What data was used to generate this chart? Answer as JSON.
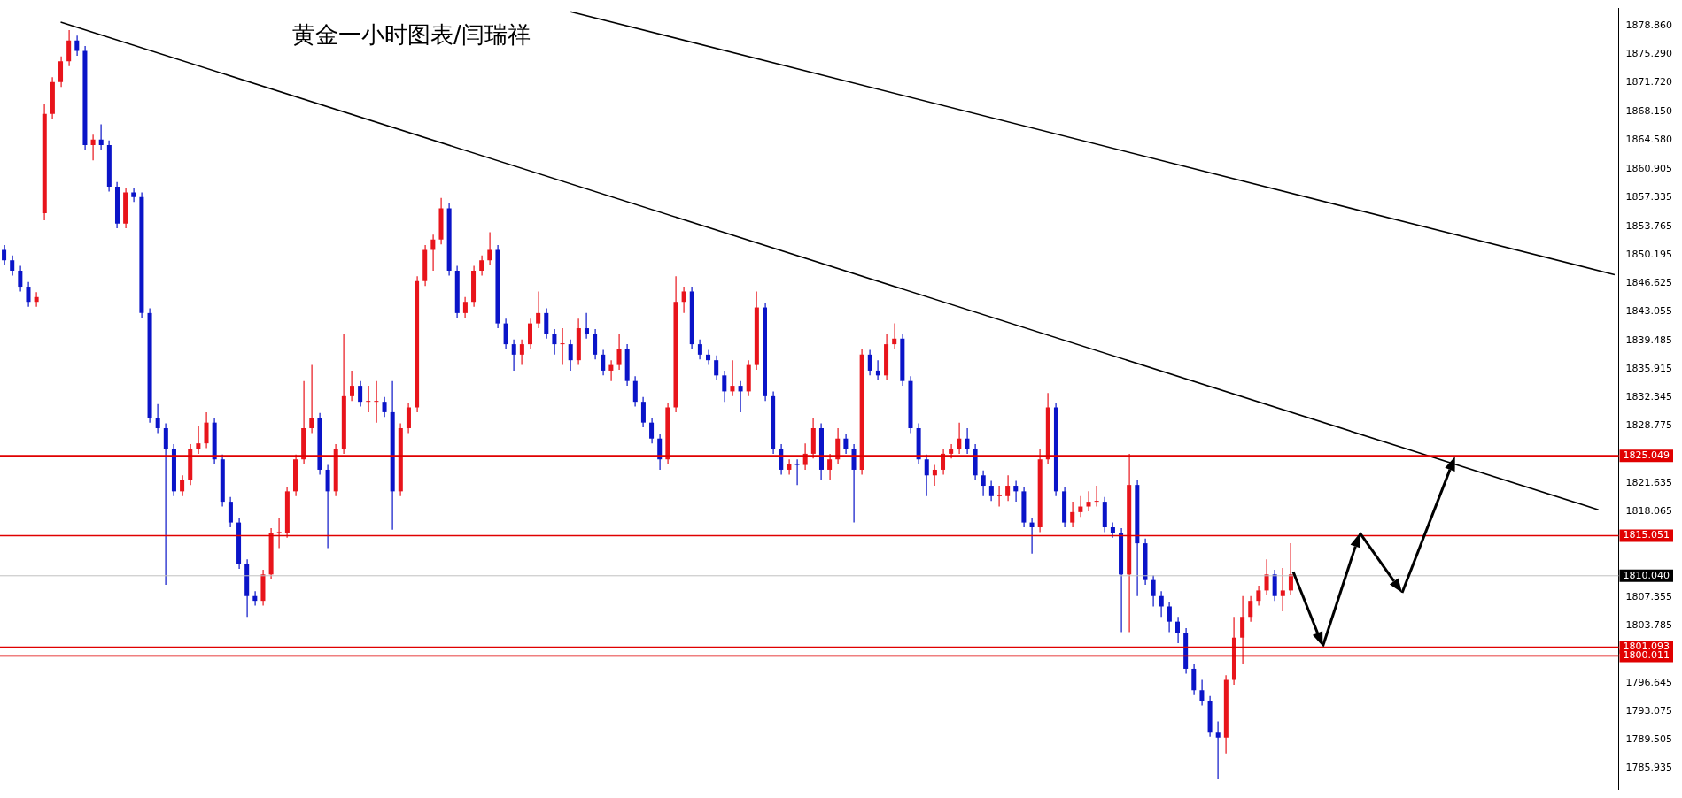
{
  "chart_data": {
    "type": "candlestick",
    "title": "黄金一小时图表/闫瑞祥",
    "categories": [
      null,
      null,
      null,
      null,
      null,
      null,
      null,
      null,
      null,
      null,
      null,
      null,
      null,
      null,
      null,
      null,
      null,
      null,
      null,
      null,
      null,
      null,
      null,
      null,
      null,
      null,
      null,
      null,
      null,
      null,
      null,
      null,
      null,
      null,
      null,
      null,
      null,
      null,
      null,
      null,
      null,
      null,
      null,
      null,
      null,
      null,
      null,
      null,
      null,
      null,
      null,
      null,
      null,
      null,
      null,
      null,
      null,
      null,
      null,
      null,
      null,
      null,
      null,
      null,
      null,
      null,
      null,
      null,
      null,
      null,
      null,
      null,
      null,
      null,
      null,
      null,
      null,
      null,
      null,
      null,
      null,
      null,
      null,
      null,
      null,
      null,
      null,
      null,
      null,
      null,
      null,
      null,
      null,
      null,
      null,
      null,
      null,
      null,
      null,
      null,
      null,
      null,
      null,
      null,
      null,
      null,
      null,
      null,
      null,
      null,
      null,
      null,
      null,
      null,
      null,
      null,
      null,
      null,
      null,
      null,
      null,
      null,
      null,
      null,
      null,
      null,
      null,
      null,
      null,
      null,
      null,
      null,
      null,
      null,
      null,
      null,
      null,
      null,
      null,
      null,
      null,
      null,
      null,
      null,
      null,
      null,
      null,
      null,
      null,
      null,
      null,
      null,
      null,
      null,
      null,
      null,
      null,
      null,
      null,
      null,
      null,
      null,
      null,
      null,
      null,
      null,
      null,
      null,
      null,
      null,
      null,
      null,
      null,
      null,
      null,
      null,
      null,
      null,
      null,
      null,
      null,
      null,
      null,
      null,
      null,
      null,
      null,
      null,
      null,
      null,
      null,
      null,
      null,
      null,
      null,
      null,
      null,
      null,
      null,
      null
    ],
    "ohlc": [
      [
        1850.8,
        1851.4,
        1848.9,
        1849.5
      ],
      [
        1849.5,
        1850.1,
        1847.6,
        1848.2
      ],
      [
        1848.2,
        1848.8,
        1845.6,
        1846.2
      ],
      [
        1846.2,
        1846.8,
        1843.7,
        1844.3
      ],
      [
        1844.3,
        1845.5,
        1843.7,
        1844.9
      ],
      [
        1855.4,
        1869.0,
        1854.5,
        1867.8
      ],
      [
        1867.8,
        1872.4,
        1867.2,
        1871.8
      ],
      [
        1871.8,
        1875.0,
        1871.2,
        1874.4
      ],
      [
        1874.4,
        1878.3,
        1873.8,
        1877.0
      ],
      [
        1877.0,
        1877.6,
        1875.1,
        1875.7
      ],
      [
        1875.7,
        1876.3,
        1863.3,
        1863.9
      ],
      [
        1863.9,
        1865.2,
        1862.0,
        1864.6
      ],
      [
        1864.6,
        1866.5,
        1863.3,
        1863.9
      ],
      [
        1863.9,
        1864.5,
        1858.1,
        1858.7
      ],
      [
        1858.7,
        1859.3,
        1853.5,
        1854.1
      ],
      [
        1854.1,
        1858.6,
        1853.5,
        1858.0
      ],
      [
        1858.0,
        1858.6,
        1856.8,
        1857.4
      ],
      [
        1857.4,
        1858.0,
        1842.3,
        1842.9
      ],
      [
        1842.9,
        1843.5,
        1829.2,
        1829.8
      ],
      [
        1829.8,
        1831.5,
        1827.9,
        1828.5
      ],
      [
        1828.5,
        1829.1,
        1808.9,
        1825.9
      ],
      [
        1825.9,
        1826.5,
        1820.0,
        1820.6
      ],
      [
        1820.6,
        1822.6,
        1820.0,
        1822.0
      ],
      [
        1822.0,
        1826.5,
        1821.4,
        1825.9
      ],
      [
        1825.9,
        1828.8,
        1825.3,
        1826.6
      ],
      [
        1826.6,
        1830.5,
        1826.0,
        1829.2
      ],
      [
        1829.2,
        1829.8,
        1824.0,
        1824.6
      ],
      [
        1824.6,
        1825.2,
        1818.7,
        1819.3
      ],
      [
        1819.3,
        1819.9,
        1816.1,
        1816.7
      ],
      [
        1816.7,
        1817.3,
        1810.9,
        1811.5
      ],
      [
        1811.5,
        1812.1,
        1804.9,
        1807.5
      ],
      [
        1807.5,
        1808.1,
        1806.3,
        1806.9
      ],
      [
        1806.9,
        1810.8,
        1806.3,
        1810.2
      ],
      [
        1810.2,
        1816.0,
        1809.6,
        1815.4
      ],
      [
        1815.4,
        1817.3,
        1813.5,
        1815.4
      ],
      [
        1815.4,
        1821.2,
        1814.8,
        1820.6
      ],
      [
        1820.6,
        1825.2,
        1820.0,
        1824.6
      ],
      [
        1824.6,
        1834.4,
        1824.0,
        1828.5
      ],
      [
        1828.5,
        1836.4,
        1827.9,
        1829.8
      ],
      [
        1829.8,
        1830.4,
        1822.7,
        1823.3
      ],
      [
        1823.3,
        1823.9,
        1813.5,
        1820.6
      ],
      [
        1820.6,
        1826.5,
        1820.0,
        1825.9
      ],
      [
        1825.9,
        1840.3,
        1825.3,
        1832.5
      ],
      [
        1832.5,
        1835.7,
        1831.9,
        1833.8
      ],
      [
        1833.8,
        1834.4,
        1831.2,
        1831.8
      ],
      [
        1831.8,
        1833.8,
        1830.5,
        1831.8
      ],
      [
        1831.8,
        1834.4,
        1829.2,
        1831.8
      ],
      [
        1831.8,
        1832.4,
        1829.9,
        1830.5
      ],
      [
        1830.5,
        1834.4,
        1815.8,
        1820.6
      ],
      [
        1820.6,
        1829.1,
        1820.0,
        1828.5
      ],
      [
        1828.5,
        1831.7,
        1827.9,
        1831.1
      ],
      [
        1831.1,
        1847.5,
        1830.5,
        1846.9
      ],
      [
        1846.9,
        1851.4,
        1846.3,
        1850.8
      ],
      [
        1850.8,
        1852.7,
        1848.2,
        1852.1
      ],
      [
        1852.1,
        1857.3,
        1851.5,
        1856.0
      ],
      [
        1856.0,
        1856.6,
        1847.6,
        1848.2
      ],
      [
        1848.2,
        1848.8,
        1842.3,
        1842.9
      ],
      [
        1842.9,
        1844.9,
        1842.3,
        1844.3
      ],
      [
        1844.3,
        1848.8,
        1843.7,
        1848.2
      ],
      [
        1848.2,
        1850.1,
        1847.6,
        1849.5
      ],
      [
        1849.5,
        1853.0,
        1848.9,
        1850.8
      ],
      [
        1850.8,
        1851.4,
        1841.0,
        1841.6
      ],
      [
        1841.6,
        1842.2,
        1838.4,
        1839.0
      ],
      [
        1839.0,
        1839.6,
        1835.7,
        1837.7
      ],
      [
        1837.7,
        1839.6,
        1836.4,
        1839.0
      ],
      [
        1839.0,
        1842.2,
        1838.4,
        1841.6
      ],
      [
        1841.6,
        1845.6,
        1841.0,
        1842.9
      ],
      [
        1842.9,
        1843.5,
        1839.7,
        1840.3
      ],
      [
        1840.3,
        1840.9,
        1837.7,
        1839.0
      ],
      [
        1839.0,
        1841.0,
        1836.4,
        1839.0
      ],
      [
        1839.0,
        1839.6,
        1835.7,
        1837.0
      ],
      [
        1837.0,
        1842.2,
        1836.4,
        1841.0
      ],
      [
        1841.0,
        1842.9,
        1839.7,
        1840.3
      ],
      [
        1840.3,
        1840.9,
        1837.1,
        1837.7
      ],
      [
        1837.7,
        1838.3,
        1835.1,
        1835.7
      ],
      [
        1835.7,
        1837.0,
        1834.4,
        1836.4
      ],
      [
        1836.4,
        1840.3,
        1835.8,
        1838.4
      ],
      [
        1838.4,
        1839.0,
        1833.8,
        1834.4
      ],
      [
        1834.4,
        1835.0,
        1831.2,
        1831.8
      ],
      [
        1831.8,
        1832.4,
        1828.6,
        1829.2
      ],
      [
        1829.2,
        1829.8,
        1826.6,
        1827.2
      ],
      [
        1827.2,
        1827.8,
        1823.3,
        1824.6
      ],
      [
        1824.6,
        1831.7,
        1824.0,
        1831.1
      ],
      [
        1831.1,
        1847.5,
        1830.5,
        1844.3
      ],
      [
        1844.3,
        1846.2,
        1842.9,
        1845.6
      ],
      [
        1845.6,
        1846.2,
        1838.4,
        1839.0
      ],
      [
        1839.0,
        1839.6,
        1837.1,
        1837.7
      ],
      [
        1837.7,
        1838.3,
        1836.4,
        1837.0
      ],
      [
        1837.0,
        1837.6,
        1834.5,
        1835.1
      ],
      [
        1835.1,
        1835.7,
        1831.8,
        1833.1
      ],
      [
        1833.1,
        1837.0,
        1832.5,
        1833.8
      ],
      [
        1833.8,
        1834.4,
        1830.5,
        1833.1
      ],
      [
        1833.1,
        1837.0,
        1832.5,
        1836.4
      ],
      [
        1836.4,
        1845.6,
        1835.8,
        1843.6
      ],
      [
        1843.6,
        1844.2,
        1831.9,
        1832.5
      ],
      [
        1832.5,
        1833.1,
        1825.3,
        1825.9
      ],
      [
        1825.9,
        1826.5,
        1822.7,
        1823.3
      ],
      [
        1823.3,
        1824.6,
        1822.7,
        1824.0
      ],
      [
        1824.0,
        1824.6,
        1821.4,
        1823.9
      ],
      [
        1823.9,
        1826.6,
        1823.3,
        1825.3
      ],
      [
        1825.3,
        1829.8,
        1824.7,
        1828.5
      ],
      [
        1828.5,
        1829.1,
        1822.0,
        1823.3
      ],
      [
        1823.3,
        1825.3,
        1822.0,
        1824.6
      ],
      [
        1824.6,
        1828.5,
        1824.0,
        1827.2
      ],
      [
        1827.2,
        1827.8,
        1825.3,
        1825.9
      ],
      [
        1825.9,
        1826.5,
        1816.7,
        1823.3
      ],
      [
        1823.3,
        1838.4,
        1822.7,
        1837.7
      ],
      [
        1837.7,
        1838.3,
        1835.1,
        1835.7
      ],
      [
        1835.7,
        1837.0,
        1834.5,
        1835.1
      ],
      [
        1835.1,
        1840.3,
        1834.5,
        1839.0
      ],
      [
        1839.0,
        1841.6,
        1838.4,
        1839.7
      ],
      [
        1839.7,
        1840.3,
        1833.8,
        1834.4
      ],
      [
        1834.4,
        1835.0,
        1827.9,
        1828.5
      ],
      [
        1828.5,
        1829.1,
        1824.0,
        1824.6
      ],
      [
        1824.6,
        1825.2,
        1820.0,
        1822.6
      ],
      [
        1822.6,
        1823.9,
        1821.3,
        1823.3
      ],
      [
        1823.3,
        1825.9,
        1822.7,
        1825.3
      ],
      [
        1825.3,
        1826.5,
        1824.7,
        1825.9
      ],
      [
        1825.9,
        1829.2,
        1825.3,
        1827.2
      ],
      [
        1827.2,
        1828.5,
        1825.3,
        1825.9
      ],
      [
        1825.9,
        1826.5,
        1822.0,
        1822.6
      ],
      [
        1822.6,
        1823.2,
        1820.0,
        1821.3
      ],
      [
        1821.3,
        1821.9,
        1819.4,
        1820.0
      ],
      [
        1820.0,
        1821.3,
        1818.7,
        1820.0
      ],
      [
        1820.0,
        1822.6,
        1819.4,
        1821.3
      ],
      [
        1821.3,
        1821.9,
        1819.3,
        1820.6
      ],
      [
        1820.6,
        1821.2,
        1816.1,
        1816.7
      ],
      [
        1816.7,
        1817.3,
        1812.8,
        1816.1
      ],
      [
        1816.1,
        1825.9,
        1815.5,
        1824.6
      ],
      [
        1824.6,
        1832.9,
        1824.0,
        1831.1
      ],
      [
        1831.1,
        1831.7,
        1820.0,
        1820.6
      ],
      [
        1820.6,
        1821.2,
        1816.1,
        1816.7
      ],
      [
        1816.7,
        1819.3,
        1816.1,
        1818.0
      ],
      [
        1818.0,
        1820.0,
        1817.4,
        1818.7
      ],
      [
        1818.7,
        1820.6,
        1818.1,
        1819.3
      ],
      [
        1819.3,
        1821.3,
        1818.7,
        1819.3
      ],
      [
        1819.3,
        1819.9,
        1815.5,
        1816.1
      ],
      [
        1816.1,
        1816.7,
        1814.8,
        1815.4
      ],
      [
        1815.4,
        1816.0,
        1803.0,
        1810.2
      ],
      [
        1810.2,
        1825.3,
        1803.0,
        1821.4
      ],
      [
        1821.4,
        1822.0,
        1807.5,
        1814.1
      ],
      [
        1814.1,
        1814.7,
        1808.9,
        1809.5
      ],
      [
        1809.5,
        1810.1,
        1806.2,
        1807.5
      ],
      [
        1807.5,
        1808.1,
        1804.9,
        1806.2
      ],
      [
        1806.2,
        1806.8,
        1803.0,
        1804.3
      ],
      [
        1804.3,
        1804.9,
        1801.6,
        1802.9
      ],
      [
        1802.9,
        1803.5,
        1797.8,
        1798.4
      ],
      [
        1798.4,
        1799.0,
        1795.1,
        1795.7
      ],
      [
        1795.7,
        1797.0,
        1793.8,
        1794.4
      ],
      [
        1794.4,
        1795.0,
        1789.9,
        1790.5
      ],
      [
        1790.5,
        1791.8,
        1784.6,
        1789.8
      ],
      [
        1789.8,
        1797.6,
        1787.8,
        1797.0
      ],
      [
        1797.0,
        1804.9,
        1796.4,
        1802.3
      ],
      [
        1802.3,
        1807.5,
        1799.0,
        1804.9
      ],
      [
        1804.9,
        1807.5,
        1804.3,
        1806.9
      ],
      [
        1806.9,
        1808.8,
        1806.3,
        1808.2
      ],
      [
        1808.2,
        1812.1,
        1807.6,
        1810.2
      ],
      [
        1810.2,
        1810.8,
        1806.9,
        1807.5
      ],
      [
        1807.5,
        1811.0,
        1805.6,
        1808.2
      ],
      [
        1808.2,
        1814.1,
        1807.6,
        1810.2
      ],
      null,
      null,
      null,
      null,
      null,
      null,
      null,
      null,
      null,
      null,
      null,
      null,
      null,
      null,
      null,
      null,
      null,
      null,
      null,
      null,
      null,
      null,
      null,
      null,
      null,
      null,
      null,
      null,
      null,
      null,
      null,
      null,
      null,
      null,
      null,
      null,
      null,
      null,
      null,
      null
    ],
    "colors": [
      "#0a14c8",
      "#0a14c8",
      "#0a14c8",
      "#0a14c8",
      "#e8141b",
      "#e8141b",
      "#e8141b",
      "#e8141b",
      "#e8141b",
      "#0a14c8",
      "#0a14c8",
      "#e8141b",
      "#0a14c8",
      "#0a14c8",
      "#0a14c8",
      "#e8141b",
      "#0a14c8",
      "#0a14c8",
      "#0a14c8",
      "#0a14c8",
      "#0a14c8",
      "#0a14c8",
      "#e8141b",
      "#e8141b",
      "#e8141b",
      "#e8141b",
      "#0a14c8",
      "#0a14c8",
      "#0a14c8",
      "#0a14c8",
      "#0a14c8",
      "#0a14c8",
      "#e8141b",
      "#e8141b",
      "#e8141b",
      "#e8141b",
      "#e8141b",
      "#e8141b",
      "#e8141b",
      "#0a14c8",
      "#0a14c8",
      "#e8141b",
      "#e8141b",
      "#e8141b",
      "#0a14c8",
      "#e8141b",
      "#e8141b",
      "#0a14c8",
      "#0a14c8",
      "#e8141b",
      "#e8141b",
      "#e8141b",
      "#e8141b",
      "#e8141b",
      "#e8141b",
      "#0a14c8",
      "#0a14c8",
      "#e8141b",
      "#e8141b",
      "#e8141b",
      "#e8141b",
      "#0a14c8",
      "#0a14c8",
      "#0a14c8",
      "#e8141b",
      "#e8141b",
      "#e8141b",
      "#0a14c8",
      "#0a14c8",
      "#e8141b",
      "#0a14c8",
      "#e8141b",
      "#0a14c8",
      "#0a14c8",
      "#0a14c8",
      "#e8141b",
      "#e8141b",
      "#0a14c8",
      "#0a14c8",
      "#0a14c8",
      "#0a14c8",
      "#0a14c8",
      "#e8141b",
      "#e8141b",
      "#e8141b",
      "#0a14c8",
      "#0a14c8",
      "#0a14c8",
      "#0a14c8",
      "#0a14c8",
      "#e8141b",
      "#0a14c8",
      "#e8141b",
      "#e8141b",
      "#0a14c8",
      "#0a14c8",
      "#0a14c8",
      "#e8141b",
      "#0a14c8",
      "#e8141b",
      "#e8141b",
      "#0a14c8",
      "#e8141b",
      "#e8141b",
      "#0a14c8",
      "#0a14c8",
      "#e8141b",
      "#0a14c8",
      "#0a14c8",
      "#e8141b",
      "#e8141b",
      "#0a14c8",
      "#0a14c8",
      "#0a14c8",
      "#0a14c8",
      "#e8141b",
      "#e8141b",
      "#e8141b",
      "#e8141b",
      "#0a14c8",
      "#0a14c8",
      "#0a14c8",
      "#0a14c8",
      "#e8141b",
      "#e8141b",
      "#0a14c8",
      "#0a14c8",
      "#0a14c8",
      "#e8141b",
      "#e8141b",
      "#0a14c8",
      "#0a14c8",
      "#e8141b",
      "#e8141b",
      "#e8141b",
      "#e8141b",
      "#0a14c8",
      "#0a14c8",
      "#0a14c8",
      "#e8141b",
      "#0a14c8",
      "#0a14c8",
      "#0a14c8",
      "#0a14c8",
      "#0a14c8",
      "#0a14c8",
      "#0a14c8",
      "#0a14c8",
      "#0a14c8",
      "#0a14c8",
      "#0a14c8",
      "#e8141b",
      "#e8141b",
      "#e8141b",
      "#e8141b",
      "#e8141b",
      "#e8141b",
      "#0a14c8",
      "#e8141b",
      "#e8141b",
      null,
      null,
      null,
      null,
      null,
      null,
      null,
      null,
      null,
      null,
      null,
      null,
      null,
      null,
      null,
      null,
      null,
      null,
      null,
      null,
      null,
      null,
      null,
      null,
      null,
      null,
      null,
      null,
      null,
      null,
      null,
      null,
      null,
      null,
      null,
      null,
      null,
      null,
      null,
      null
    ],
    "series": [
      {
        "type": "line",
        "color": "#000000",
        "values": [
          null,
          null,
          null,
          null,
          null,
          null,
          null,
          1879.3,
          null,
          null,
          null,
          null,
          null,
          null,
          null,
          null,
          null,
          null,
          null,
          null,
          null,
          null,
          null,
          null,
          null,
          null,
          null,
          null,
          null,
          null,
          null,
          null,
          null,
          null,
          null,
          null,
          null,
          null,
          null,
          null,
          null,
          null,
          null,
          null,
          null,
          null,
          null,
          null,
          null,
          null,
          null,
          null,
          null,
          null,
          null,
          null,
          null,
          null,
          null,
          null,
          null,
          null,
          null,
          null,
          null,
          null,
          null,
          null,
          null,
          null,
          null,
          null,
          null,
          null,
          null,
          null,
          null,
          null,
          null,
          null,
          null,
          null,
          null,
          null,
          null,
          null,
          null,
          null,
          null,
          null,
          null,
          null,
          null,
          null,
          null,
          null,
          null,
          null,
          null,
          null,
          null,
          null,
          null,
          null,
          null,
          null,
          null,
          null,
          null,
          null,
          null,
          null,
          null,
          null,
          null,
          null,
          null,
          null,
          null,
          null,
          null,
          null,
          null,
          null,
          null,
          null,
          null,
          null,
          null,
          null,
          null,
          null,
          null,
          null,
          null,
          null,
          null,
          null,
          null,
          null,
          null,
          null,
          null,
          null,
          null,
          null,
          null,
          null,
          null,
          null,
          null,
          null,
          null,
          null,
          null,
          null,
          null,
          null,
          null,
          null,
          null,
          null,
          null,
          null,
          null,
          null,
          null,
          null,
          null,
          null,
          null,
          null,
          null,
          null,
          null,
          null,
          null,
          null,
          null,
          null,
          null,
          null,
          null,
          null,
          null,
          null,
          null,
          null,
          null,
          null,
          null,
          null,
          null,
          null,
          null,
          null,
          null,
          1818.3,
          null,
          null
        ]
      },
      {
        "type": "line",
        "color": "#000000",
        "values": [
          null,
          null,
          null,
          null,
          null,
          null,
          null,
          null,
          null,
          null,
          null,
          null,
          null,
          null,
          null,
          null,
          null,
          null,
          null,
          null,
          null,
          null,
          null,
          null,
          null,
          null,
          null,
          null,
          null,
          null,
          null,
          null,
          null,
          null,
          null,
          null,
          null,
          null,
          null,
          null,
          null,
          null,
          null,
          null,
          null,
          null,
          null,
          null,
          null,
          null,
          null,
          null,
          null,
          null,
          null,
          null,
          null,
          null,
          null,
          null,
          null,
          null,
          null,
          null,
          null,
          null,
          null,
          null,
          null,
          null,
          1880.6,
          null,
          null,
          null,
          null,
          null,
          null,
          null,
          null,
          null,
          null,
          null,
          null,
          null,
          null,
          null,
          null,
          null,
          null,
          null,
          null,
          null,
          null,
          null,
          null,
          null,
          null,
          null,
          null,
          null,
          null,
          null,
          null,
          null,
          null,
          null,
          null,
          null,
          null,
          null,
          null,
          null,
          null,
          null,
          null,
          null,
          null,
          null,
          null,
          null,
          null,
          null,
          null,
          null,
          null,
          null,
          null,
          null,
          null,
          null,
          null,
          null,
          null,
          null,
          null,
          null,
          null,
          null,
          null,
          null,
          null,
          null,
          null,
          null,
          null,
          null,
          null,
          null,
          null,
          null,
          null,
          null,
          null,
          null,
          null,
          null,
          null,
          null,
          null,
          null,
          null,
          null,
          null,
          null,
          null,
          null,
          null,
          null,
          null,
          null,
          null,
          null,
          null,
          null,
          null,
          null,
          null,
          null,
          null,
          null,
          null,
          null,
          null,
          null,
          null,
          null,
          null,
          null,
          null,
          null,
          null,
          null,
          null,
          null,
          null,
          null,
          null,
          null,
          null,
          1847.7
        ]
      }
    ],
    "ylim": [
      1783.3,
      1881.0
    ],
    "yticks": [
      {
        "value": 1878.86,
        "label": "1878.860"
      },
      {
        "value": 1875.29,
        "label": "1875.290"
      },
      {
        "value": 1871.72,
        "label": "1871.720"
      },
      {
        "value": 1868.15,
        "label": "1868.150"
      },
      {
        "value": 1864.58,
        "label": "1864.580"
      },
      1860.905,
      1857.335,
      1853.765,
      1850.195,
      1846.625,
      1843.055,
      1839.485,
      1835.915,
      1832.345,
      1828.775,
      1821.635,
      1818.065,
      1807.355,
      1803.785,
      1796.645,
      1793.075,
      1789.505,
      1785.935
    ],
    "ref_lines": [
      {
        "axis": "y",
        "value": 1825.049,
        "label": "1825.049",
        "color": "#e00000"
      },
      {
        "axis": "y",
        "value": 1815.051,
        "label": "1815.051",
        "color": "#e00000"
      },
      {
        "axis": "y",
        "value": 1810.04,
        "label": "1810.040",
        "color": "#c0c0c0"
      },
      {
        "axis": "y",
        "value": 1801.093,
        "label": "1801.093",
        "color": "#e00000"
      },
      {
        "axis": "y",
        "value": 1800.011,
        "label": "1800.011",
        "color": "#e00000"
      }
    ],
    "grid": false,
    "legend": false,
    "tick_labels": "y"
  }
}
